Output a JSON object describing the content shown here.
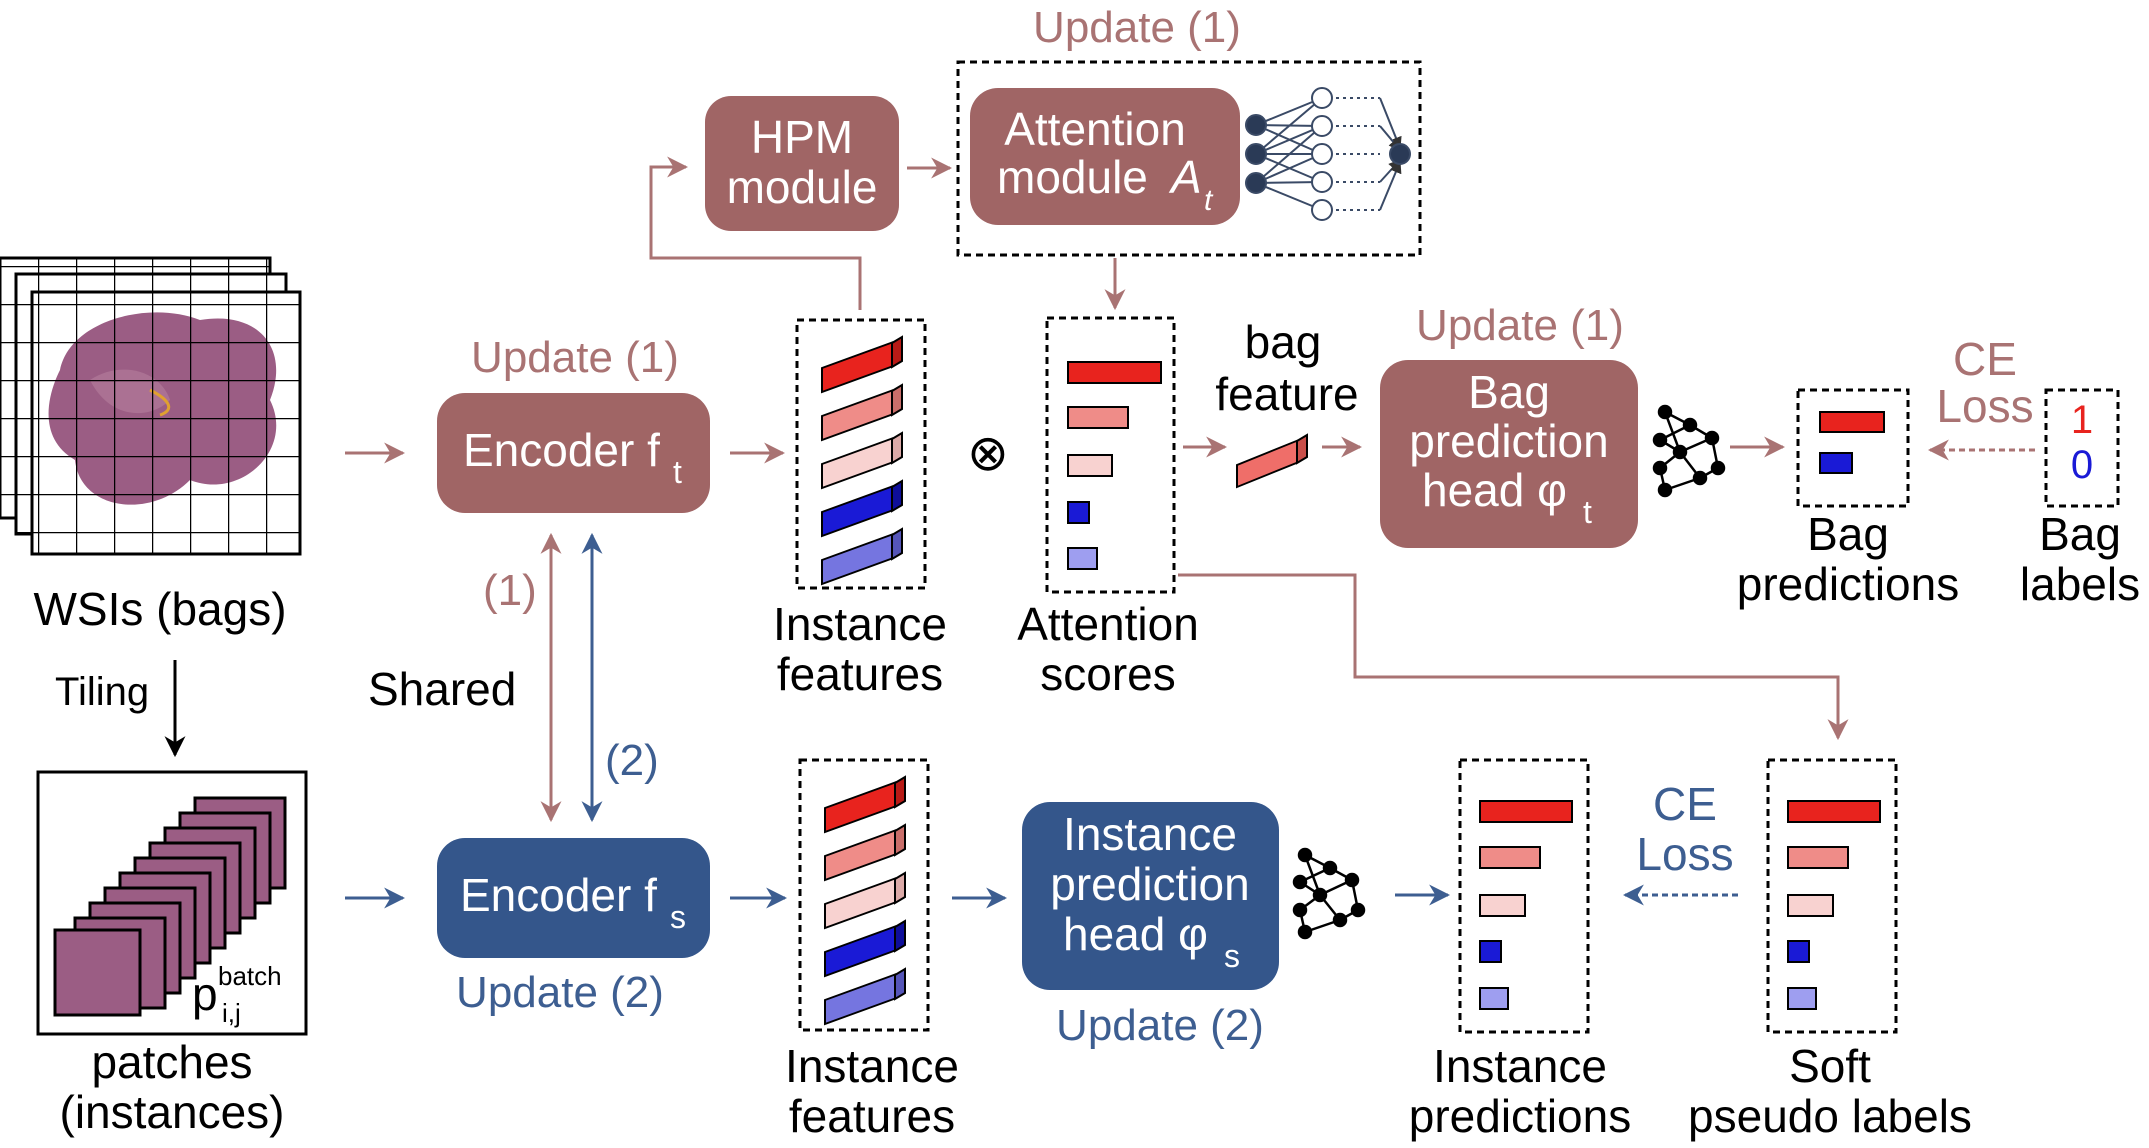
{
  "colors": {
    "teacher": "#a06565",
    "teacher_line": "#a97373",
    "student": "#34568b",
    "student_line": "#3d5e91",
    "red": "#e8231e",
    "blue": "#1a1ad6",
    "tissue": "#9b5d84"
  },
  "wsi": {
    "label": "WSIs (bags)",
    "tiling_label": "Tiling"
  },
  "patches": {
    "label_line1": "patches",
    "label_line2": "(instances)",
    "symbol": "p",
    "superscript": "batch",
    "subscript": "i,j"
  },
  "encoder_t": {
    "label": "Encoder f",
    "sub": "t",
    "update": "Update (1)"
  },
  "encoder_s": {
    "label": "Encoder f",
    "sub": "s",
    "update": "Update (2)"
  },
  "shared": {
    "label": "Shared",
    "path1": "(1)",
    "path2": "(2)"
  },
  "hpm": {
    "line1": "HPM",
    "line2": "module"
  },
  "attention": {
    "line1": "Attention",
    "line2": "module ",
    "symbol": "A",
    "sub": "t",
    "update": "Update (1)"
  },
  "instance_features_top": {
    "line1": "Instance",
    "line2": "features"
  },
  "instance_features_bottom": {
    "line1": "Instance",
    "line2": "features"
  },
  "otimes": "⊗",
  "attention_scores": {
    "line1": "Attention",
    "line2": "scores"
  },
  "bag_feature": {
    "line1": "bag",
    "line2": "feature"
  },
  "bag_head": {
    "line1": "Bag",
    "line2": "prediction",
    "line3": "head φ",
    "sub": "t",
    "update": "Update (1)"
  },
  "bag_predictions": {
    "line1": "Bag",
    "line2": "predictions"
  },
  "bag_labels": {
    "line1": "Bag",
    "line2": "labels",
    "one": "1",
    "zero": "0"
  },
  "ce_loss_top": {
    "line1": "CE",
    "line2": "Loss"
  },
  "inst_head": {
    "line1": "Instance",
    "line2": "prediction",
    "line3": "head φ",
    "sub": "s",
    "update": "Update (2)"
  },
  "instance_predictions": {
    "line1": "Instance",
    "line2": "predictions"
  },
  "soft_labels": {
    "line1": "Soft",
    "line2": "pseudo labels"
  },
  "ce_loss_bottom": {
    "line1": "CE",
    "line2": "Loss"
  }
}
